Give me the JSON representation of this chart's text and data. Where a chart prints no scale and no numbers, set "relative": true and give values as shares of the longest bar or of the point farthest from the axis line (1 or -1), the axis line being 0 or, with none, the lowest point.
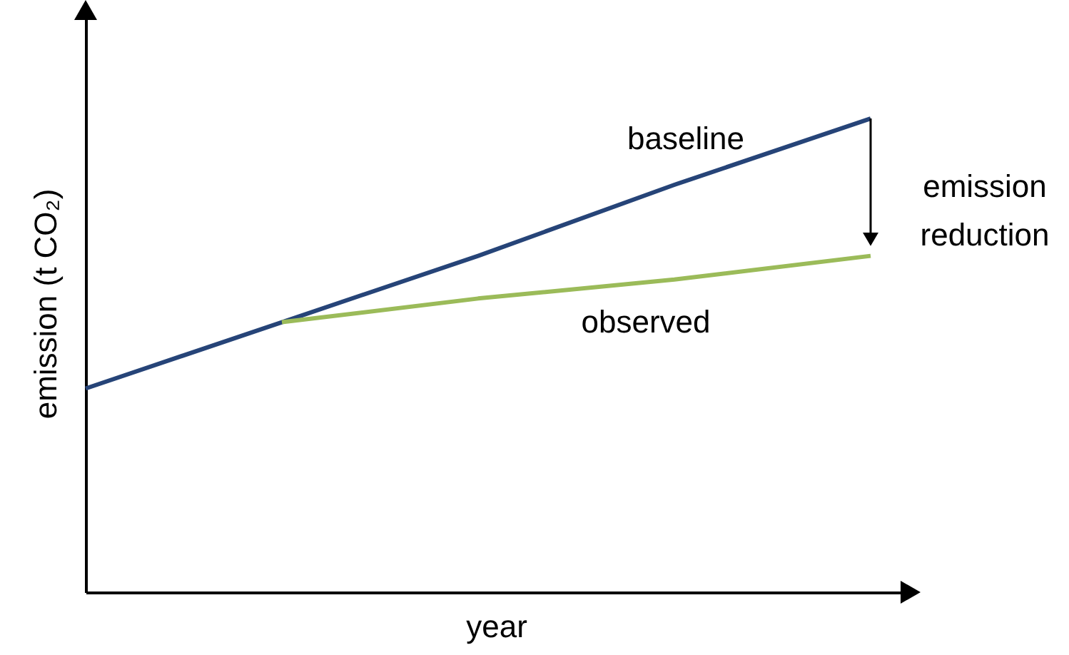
{
  "chart_data": {
    "type": "line",
    "relative": true,
    "xlabel": "year",
    "ylabel": "emission (t CO₂)",
    "marker": "none",
    "line_style": "solid",
    "ylim": [
      0,
      1.22
    ],
    "categories": [
      null,
      null,
      null,
      null,
      null
    ],
    "series": [
      {
        "color": "#264478",
        "values": [
          0.43,
          0.57,
          0.71,
          0.86,
          1
        ]
      },
      {
        "color": "#9bbb59",
        "values": [
          null,
          0.57,
          0.62,
          0.66,
          0.71
        ]
      }
    ],
    "annotations": [
      "baseline",
      "observed",
      "emission reduction"
    ]
  }
}
